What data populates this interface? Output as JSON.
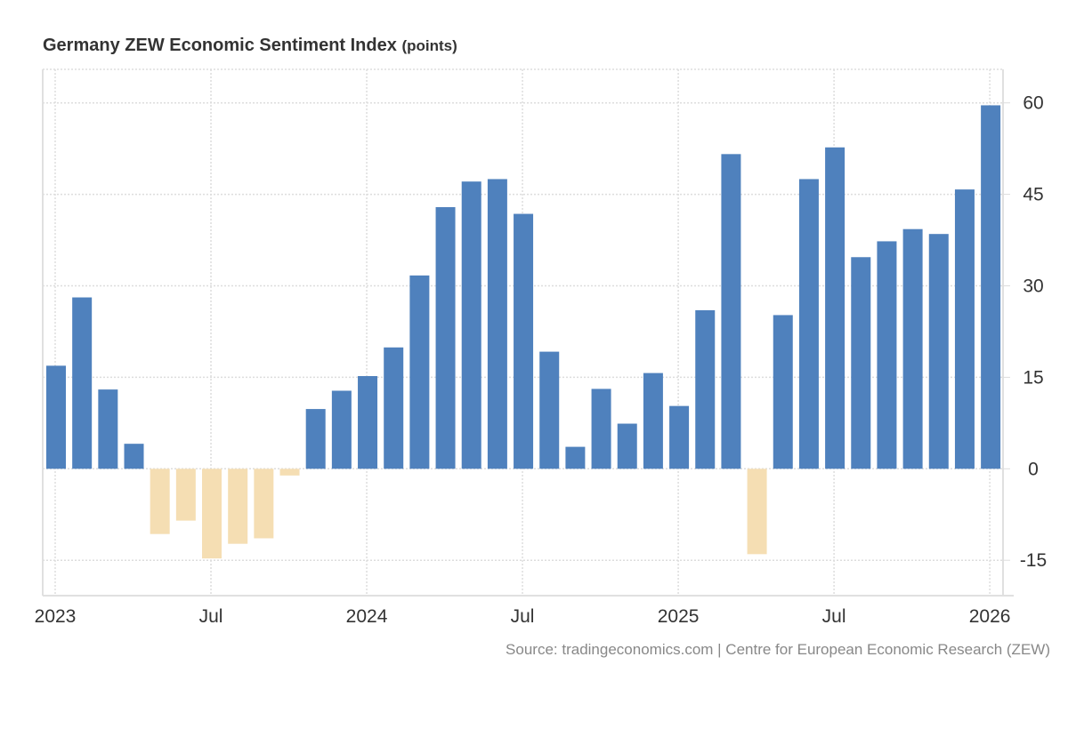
{
  "chart_data": {
    "type": "bar",
    "title": "Germany ZEW Economic Sentiment Index",
    "unit": "(points)",
    "xlabel": "",
    "ylabel": "",
    "ylim": [
      -20,
      65
    ],
    "yticks": [
      -15,
      0,
      15,
      30,
      45,
      60
    ],
    "xticks": [
      {
        "label": "2023",
        "index": 0
      },
      {
        "label": "Jul",
        "index": 6
      },
      {
        "label": "2024",
        "index": 12
      },
      {
        "label": "Jul",
        "index": 18
      },
      {
        "label": "2025",
        "index": 24
      },
      {
        "label": "Jul",
        "index": 30
      },
      {
        "label": "2026",
        "index": 36
      }
    ],
    "grid": true,
    "y_axis_side": "right",
    "positive_color": "#4f81bd",
    "negative_color": "#f5deb3",
    "categories": [
      "Jan 2023",
      "Feb 2023",
      "Mar 2023",
      "Apr 2023",
      "May 2023",
      "Jun 2023",
      "Jul 2023",
      "Aug 2023",
      "Sep 2023",
      "Oct 2023",
      "Nov 2023",
      "Dec 2023",
      "Jan 2024",
      "Feb 2024",
      "Mar 2024",
      "Apr 2024",
      "May 2024",
      "Jun 2024",
      "Jul 2024",
      "Aug 2024",
      "Sep 2024",
      "Oct 2024",
      "Nov 2024",
      "Dec 2024",
      "Jan 2025",
      "Feb 2025",
      "Mar 2025",
      "Apr 2025",
      "May 2025",
      "Jun 2025",
      "Jul 2025",
      "Aug 2025",
      "Sep 2025",
      "Oct 2025",
      "Nov 2025",
      "Dec 2025",
      "Jan 2026"
    ],
    "values": [
      16.9,
      28.1,
      13.0,
      4.1,
      -10.7,
      -8.5,
      -14.7,
      -12.3,
      -11.4,
      -1.1,
      9.8,
      12.8,
      15.2,
      19.9,
      31.7,
      42.9,
      47.1,
      47.5,
      41.8,
      19.2,
      3.6,
      13.1,
      7.4,
      15.7,
      10.3,
      26.0,
      51.6,
      -14.0,
      25.2,
      47.5,
      52.7,
      34.7,
      37.3,
      39.3,
      38.5,
      45.8,
      59.6
    ]
  },
  "source": "Source: tradingeconomics.com | Centre for European Economic Research (ZEW)"
}
